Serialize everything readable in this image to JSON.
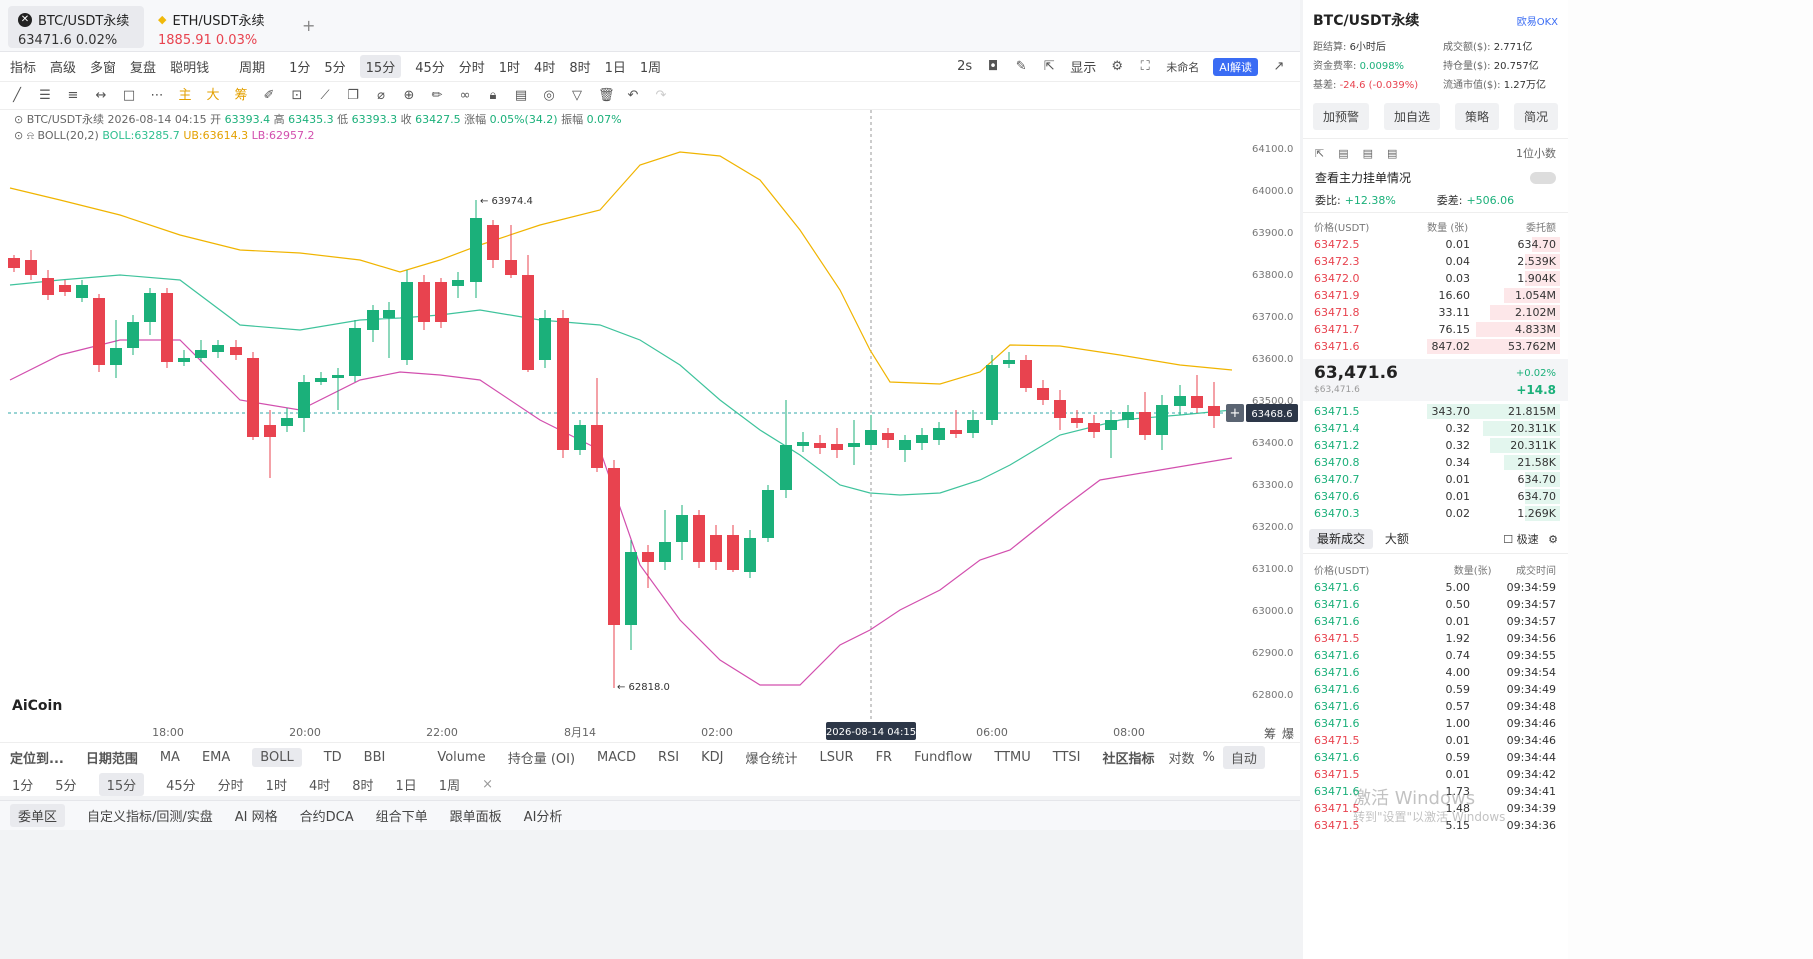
{
  "tabs": [
    {
      "symbol": "BTC/USDT永续",
      "price": "63471.6",
      "change": "0.02%"
    },
    {
      "symbol": "ETH/USDT永续",
      "price": "1885.91",
      "change": "0.03%"
    }
  ],
  "add_tab": "+",
  "toolbar1": [
    "指标",
    "高级",
    "多窗",
    "复盘",
    "聪明钱",
    "周期",
    "1分",
    "5分",
    "15分",
    "45分",
    "分时",
    "1时",
    "4时",
    "8时",
    "1日",
    "1周"
  ],
  "toolbar1_right": {
    "interval": "2s",
    "display": "显示",
    "unnamed": "未命名",
    "ai": "AI解读"
  },
  "toolbar2_labels": [
    "主",
    "大",
    "筹"
  ],
  "info": {
    "line1_name": "BTC/USDT永续",
    "line1_time": "2026-08-14 04:15",
    "open_l": "开",
    "open": "63393.4",
    "high_l": "高",
    "high": "63435.3",
    "low_l": "低",
    "low": "63393.3",
    "close_l": "收",
    "close": "63427.5",
    "chg_l": "涨幅",
    "chg": "0.05%(34.2)",
    "amp_l": "振幅",
    "amp": "0.07%",
    "boll_label": "BOLL(20,2)",
    "boll": "BOLL:63285.7",
    "ub": "UB:63614.3",
    "lb": "LB:62957.2"
  },
  "chart_data": {
    "type": "candlestick",
    "yticks": [
      "64100.0",
      "64000.0",
      "63900.0",
      "63800.0",
      "63700.0",
      "63600.0",
      "63500.0",
      "63400.0",
      "63300.0",
      "63200.0",
      "63100.0",
      "63000.0",
      "62900.0",
      "62800.0"
    ],
    "xticks": [
      "18:00",
      "20:00",
      "22:00",
      "8月14",
      "02:00",
      "06:00",
      "08:00"
    ],
    "crosshair_time": "2026-08-14 04:15",
    "last_price": "63468.6",
    "high_mark": "← 63974.4",
    "low_mark": "← 62818.0",
    "axis_btns": [
      "筹",
      "爆"
    ],
    "logo": "AiCoin",
    "colors": {
      "up": "#1bb07a",
      "down": "#e8434f",
      "boll": "#3fc39c",
      "ub": "#f0b400",
      "lb": "#d24fae"
    }
  },
  "bottom1": {
    "locate": "定位到...",
    "range": "日期范围",
    "inds": [
      "MA",
      "EMA",
      "BOLL",
      "TD",
      "BBI"
    ],
    "subs": [
      "Volume",
      "持仓量 (OI)",
      "MACD",
      "RSI",
      "KDJ",
      "爆仓统计",
      "LSUR",
      "FR",
      "Fundflow",
      "TTMU",
      "TTSI"
    ],
    "community": "社区指标",
    "log": "对数",
    "pct": "%",
    "auto": "自动"
  },
  "bottom2": [
    "1分",
    "5分",
    "15分",
    "45分",
    "分时",
    "1时",
    "4时",
    "8时",
    "1日",
    "1周"
  ],
  "bottom2_close": "×",
  "bottom3": [
    "委单区",
    "自定义指标/回测/实盘",
    "AI 网格",
    "合约DCA",
    "组合下单",
    "跟单面板",
    "AI分析"
  ],
  "right": {
    "title": "BTC/USDT永续",
    "exchange": "欧易OKX",
    "stats": [
      [
        "距结算:",
        "6小时后",
        "成交额($):",
        "2.771亿"
      ],
      [
        "资金费率:",
        "0.0098%",
        "持仓量($):",
        "20.757亿"
      ],
      [
        "基差:",
        "-24.6 (-0.039%)",
        "流通市值($):",
        "1.27万亿"
      ]
    ],
    "btns": [
      "加预警",
      "加自选",
      "策略",
      "简况"
    ],
    "precision": "1位小数",
    "main_orders": "查看主力挂单情况",
    "ratio_l": "委比:",
    "ratio": "+12.38%",
    "diff_l": "委差:",
    "diff": "+506.06",
    "ob_headers": [
      "价格(USDT)",
      "数量 (张)",
      "委托额"
    ],
    "asks": [
      [
        "63472.5",
        "0.01",
        "634.70",
        20
      ],
      [
        "63472.3",
        "0.04",
        "2.539K",
        25
      ],
      [
        "63472.0",
        "0.03",
        "1.904K",
        25
      ],
      [
        "63471.9",
        "16.60",
        "1.054M",
        40
      ],
      [
        "63471.8",
        "33.11",
        "2.102M",
        50
      ],
      [
        "63471.7",
        "76.15",
        "4.833M",
        60
      ],
      [
        "63471.6",
        "847.02",
        "53.762M",
        95
      ]
    ],
    "last": "63,471.6",
    "last_usd": "$63,471.6",
    "last_pct": "+0.02%",
    "last_chg": "+14.8",
    "bids": [
      [
        "63471.5",
        "343.70",
        "21.815M",
        95
      ],
      [
        "63471.4",
        "0.32",
        "20.311K",
        55
      ],
      [
        "63471.2",
        "0.32",
        "20.311K",
        50
      ],
      [
        "63470.8",
        "0.34",
        "21.58K",
        40
      ],
      [
        "63470.7",
        "0.01",
        "634.70",
        25
      ],
      [
        "63470.6",
        "0.01",
        "634.70",
        25
      ],
      [
        "63470.3",
        "0.02",
        "1.269K",
        25
      ]
    ],
    "trade_tabs": [
      "最新成交",
      "大额"
    ],
    "fast": "极速",
    "tr_headers": [
      "价格(USDT)",
      "数量(张)",
      "成交时间"
    ],
    "trades": [
      [
        "63471.6",
        "5.00",
        "09:34:59",
        "g"
      ],
      [
        "63471.6",
        "0.50",
        "09:34:57",
        "g"
      ],
      [
        "63471.6",
        "0.01",
        "09:34:57",
        "g"
      ],
      [
        "63471.5",
        "1.92",
        "09:34:56",
        "r"
      ],
      [
        "63471.6",
        "0.74",
        "09:34:55",
        "g"
      ],
      [
        "63471.6",
        "4.00",
        "09:34:54",
        "g"
      ],
      [
        "63471.6",
        "0.59",
        "09:34:49",
        "g"
      ],
      [
        "63471.6",
        "0.57",
        "09:34:48",
        "g"
      ],
      [
        "63471.6",
        "1.00",
        "09:34:46",
        "g"
      ],
      [
        "63471.5",
        "0.01",
        "09:34:46",
        "r"
      ],
      [
        "63471.6",
        "0.59",
        "09:34:44",
        "g"
      ],
      [
        "63471.5",
        "0.01",
        "09:34:42",
        "r"
      ],
      [
        "63471.6",
        "1.73",
        "09:34:41",
        "g"
      ],
      [
        "63471.5",
        "1.48",
        "09:34:39",
        "r"
      ],
      [
        "63471.5",
        "5.15",
        "09:34:36",
        "r"
      ]
    ],
    "watermark1": "激活 Windows",
    "watermark2": "转到\"设置\"以激活 Windows"
  }
}
